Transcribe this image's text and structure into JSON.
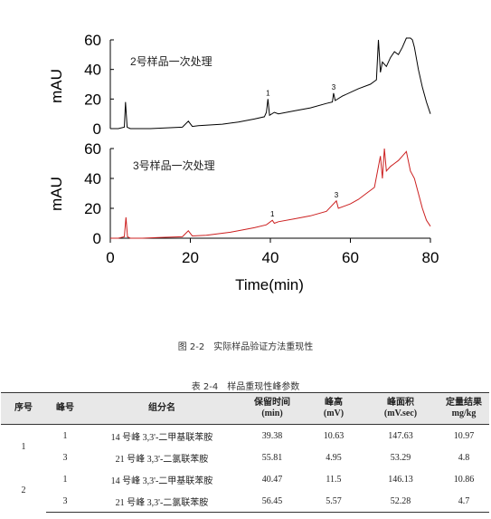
{
  "chart_data": [
    {
      "type": "line",
      "annotation": "2号样品一次处理",
      "ylabel": "mAU",
      "xlim": [
        0,
        80
      ],
      "ylim": [
        0,
        60
      ],
      "yticks": [
        0,
        20,
        40,
        60
      ],
      "color": "#000000",
      "peak_labels": [
        {
          "label": "1",
          "x": 39.4
        },
        {
          "label": "3",
          "x": 55.8
        }
      ],
      "series": [
        {
          "x": [
            0,
            2,
            3.5,
            3.8,
            4.2,
            5,
            10,
            18,
            19.5,
            20.5,
            22,
            28,
            32,
            36,
            38.5,
            39,
            39.4,
            39.8,
            41,
            42,
            46,
            50,
            54,
            55.5,
            55.8,
            56.2,
            58,
            62,
            65,
            66.5,
            67,
            67.5,
            68,
            69,
            70,
            71,
            72,
            73,
            74,
            75,
            75.5,
            76,
            77,
            78,
            79,
            80
          ],
          "values": [
            0,
            0,
            1,
            18,
            1,
            0,
            0,
            1,
            5,
            1.5,
            2,
            3,
            4.5,
            6.5,
            8,
            11,
            20,
            9,
            11,
            10,
            12,
            14,
            17,
            18,
            24,
            19,
            22,
            27,
            30,
            33,
            60,
            38,
            45,
            42,
            48,
            52,
            50,
            55,
            62,
            65,
            60,
            55,
            40,
            28,
            18,
            10
          ]
        }
      ]
    },
    {
      "type": "line",
      "annotation": "3号样品一次处理",
      "ylabel": "mAU",
      "xlabel": "Time(min)",
      "xlim": [
        0,
        80
      ],
      "ylim": [
        0,
        60
      ],
      "yticks": [
        0,
        20,
        40,
        60
      ],
      "xticks": [
        0,
        20,
        40,
        60,
        80
      ],
      "color": "#cc1f1f",
      "peak_labels": [
        {
          "label": "1",
          "x": 40.5
        },
        {
          "label": "3",
          "x": 56.5
        }
      ],
      "series": [
        {
          "x": [
            0,
            2,
            3.5,
            3.9,
            4.3,
            5,
            8,
            12,
            18,
            19.5,
            20.5,
            24,
            30,
            36,
            39,
            40.5,
            41,
            42,
            46,
            50,
            54,
            56.5,
            57,
            60,
            62,
            64,
            66,
            67.5,
            68,
            68.5,
            69,
            70,
            71,
            72,
            73,
            74,
            75,
            76,
            77,
            78,
            79,
            80
          ],
          "values": [
            0,
            0,
            1,
            14,
            1,
            0,
            0,
            0.5,
            1,
            5,
            1.5,
            2,
            4,
            7,
            9,
            12,
            10,
            11,
            13,
            15,
            18,
            25,
            20,
            23,
            26,
            30,
            34,
            55,
            40,
            60,
            45,
            48,
            50,
            52,
            55,
            58,
            45,
            40,
            30,
            20,
            12,
            8
          ]
        }
      ]
    }
  ],
  "figure_caption": "图 2-2　实际样品验证方法重现性",
  "table": {
    "caption": "表 2-4　样品重现性峰参数",
    "headers": [
      {
        "line1": "序号",
        "line2": ""
      },
      {
        "line1": "峰号",
        "line2": ""
      },
      {
        "line1": "组分名",
        "line2": ""
      },
      {
        "line1": "保留时间",
        "line2": "(min)"
      },
      {
        "line1": "峰高",
        "line2": "(mV)"
      },
      {
        "line1": "峰面积",
        "line2": "(mV.sec)"
      },
      {
        "line1": "定量结果",
        "line2": "mg/kg"
      }
    ],
    "rows": [
      {
        "sample": "1",
        "peak": "1",
        "component": "14 号峰 3,3'-二甲基联苯胺",
        "rt": "39.38",
        "height": "10.63",
        "area": "147.63",
        "result": "10.97"
      },
      {
        "sample": "",
        "peak": "3",
        "component": "21 号峰 3,3'-二氯联苯胺",
        "rt": "55.81",
        "height": "4.95",
        "area": "53.29",
        "result": "4.8"
      },
      {
        "sample": "2",
        "peak": "1",
        "component": "14 号峰 3,3'-二甲基联苯胺",
        "rt": "40.47",
        "height": "11.5",
        "area": "146.13",
        "result": "10.86"
      },
      {
        "sample": "",
        "peak": "3",
        "component": "21 号峰 3,3'-二氯联苯胺",
        "rt": "56.45",
        "height": "5.57",
        "area": "52.28",
        "result": "4.7"
      }
    ]
  }
}
